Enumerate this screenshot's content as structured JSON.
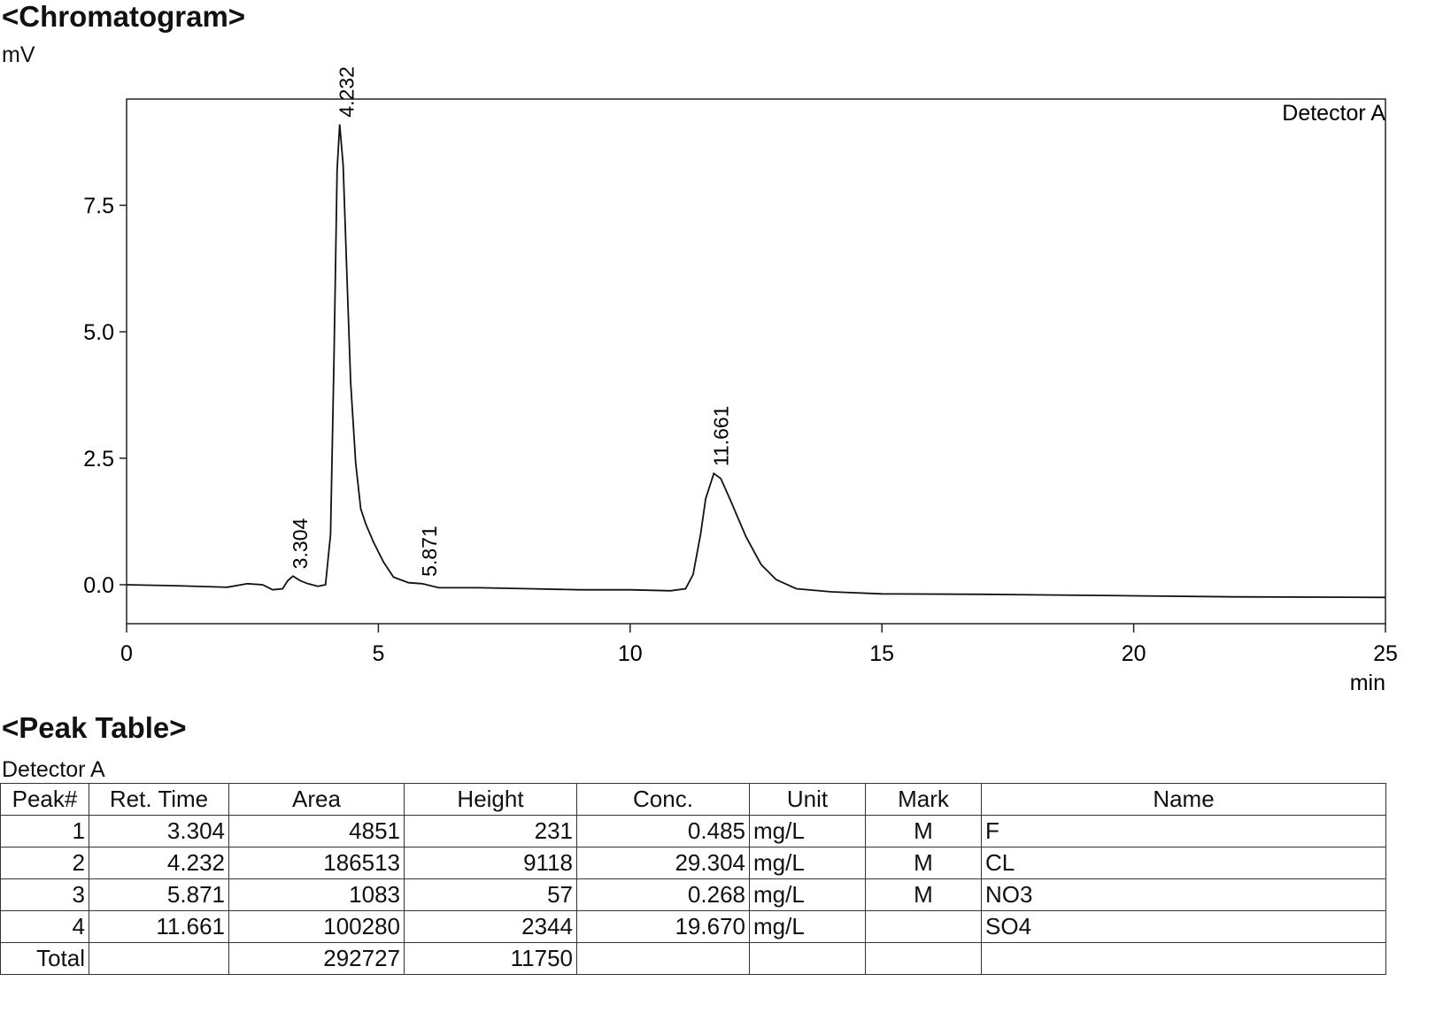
{
  "chart_data": {
    "type": "line",
    "title": "<Chromatogram>",
    "y_label": "mV",
    "x_label": "min",
    "detector_label": "Detector A",
    "xlim": [
      0,
      25
    ],
    "xticks": [
      0,
      5,
      10,
      15,
      20,
      25
    ],
    "ylim": [
      -0.77,
      9.6
    ],
    "yticks": [
      {
        "value": 0,
        "label": "0.0"
      },
      {
        "value": 2.5,
        "label": "2.5"
      },
      {
        "value": 5,
        "label": "5.0"
      },
      {
        "value": 7.5,
        "label": "7.5"
      }
    ],
    "color": "#111111",
    "x": [
      0,
      1,
      2,
      2.4,
      2.7,
      2.9,
      3.1,
      3.2,
      3.304,
      3.45,
      3.6,
      3.8,
      3.95,
      4.05,
      4.12,
      4.18,
      4.232,
      4.3,
      4.38,
      4.45,
      4.55,
      4.65,
      4.75,
      4.9,
      5.1,
      5.3,
      5.6,
      5.871,
      6.2,
      7,
      8,
      9,
      10,
      10.8,
      11.1,
      11.25,
      11.4,
      11.5,
      11.661,
      11.8,
      12.0,
      12.3,
      12.6,
      12.9,
      13.3,
      14,
      15,
      17,
      20,
      22,
      25
    ],
    "y": [
      0,
      -0.02,
      -0.05,
      0.02,
      0.0,
      -0.1,
      -0.08,
      0.08,
      0.17,
      0.08,
      0.02,
      -0.03,
      0.0,
      1.0,
      4.5,
      8.2,
      9.1,
      8.3,
      6.0,
      4.0,
      2.4,
      1.5,
      1.2,
      0.85,
      0.45,
      0.15,
      0.04,
      0.02,
      -0.06,
      -0.06,
      -0.08,
      -0.1,
      -0.1,
      -0.12,
      -0.08,
      0.2,
      1.0,
      1.7,
      2.2,
      2.1,
      1.65,
      0.95,
      0.4,
      0.1,
      -0.08,
      -0.14,
      -0.18,
      -0.19,
      -0.22,
      -0.24,
      -0.25
    ],
    "annotations": [
      {
        "label": "3.304",
        "x": 3.304,
        "y": 0.17
      },
      {
        "label": "4.232",
        "x": 4.232,
        "y": 9.1
      },
      {
        "label": "5.871",
        "x": 5.871,
        "y": 0.02
      },
      {
        "label": "11.661",
        "x": 11.661,
        "y": 2.2
      }
    ]
  },
  "peak_table": {
    "title": "<Peak Table>",
    "detector": "Detector A",
    "headers": [
      "Peak#",
      "Ret. Time",
      "Area",
      "Height",
      "Conc.",
      "Unit",
      "Mark",
      "Name"
    ],
    "rows": [
      [
        "1",
        "3.304",
        "4851",
        "231",
        "0.485",
        "mg/L",
        "M",
        "F"
      ],
      [
        "2",
        "4.232",
        "186513",
        "9118",
        "29.304",
        "mg/L",
        "M",
        "CL"
      ],
      [
        "3",
        "5.871",
        "1083",
        "57",
        "0.268",
        "mg/L",
        "M",
        "NO3"
      ],
      [
        "4",
        "11.661",
        "100280",
        "2344",
        "19.670",
        "mg/L",
        null,
        "SO4"
      ],
      [
        "Total",
        null,
        "292727",
        "11750",
        null,
        null,
        null,
        null
      ]
    ]
  }
}
